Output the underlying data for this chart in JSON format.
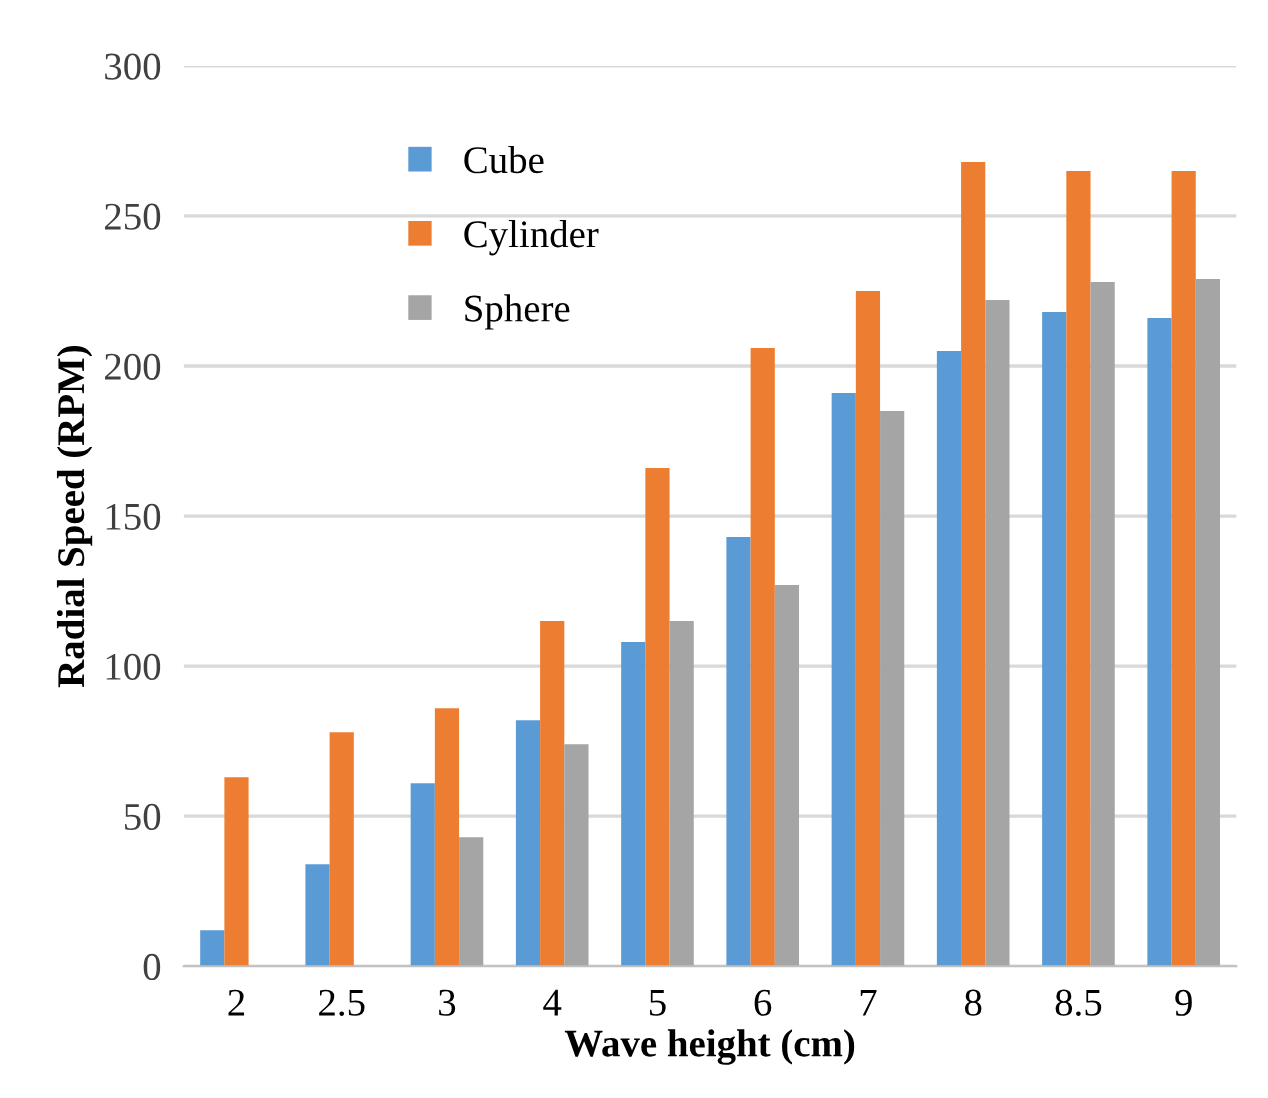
{
  "chart_data": {
    "type": "bar",
    "xlabel": "Wave height (cm)",
    "ylabel": "Radial Speed (RPM)",
    "categories": [
      "2",
      "2.5",
      "3",
      "4",
      "5",
      "6",
      "7",
      "8",
      "8.5",
      "9"
    ],
    "series": [
      {
        "name": "Cube",
        "color": "#5b9bd5",
        "values": [
          12,
          34,
          61,
          82,
          108,
          143,
          191,
          205,
          218,
          216
        ]
      },
      {
        "name": "Cylinder",
        "color": "#ed7d31",
        "values": [
          63,
          78,
          86,
          115,
          166,
          206,
          225,
          268,
          265,
          265
        ]
      },
      {
        "name": "Sphere",
        "color": "#a5a5a5",
        "values": [
          null,
          null,
          43,
          74,
          115,
          127,
          185,
          222,
          228,
          229
        ]
      }
    ],
    "ylim": [
      0,
      300
    ],
    "yticks": [
      0,
      50,
      100,
      150,
      200,
      250,
      300
    ],
    "grid": "y",
    "legend": "top left"
  }
}
